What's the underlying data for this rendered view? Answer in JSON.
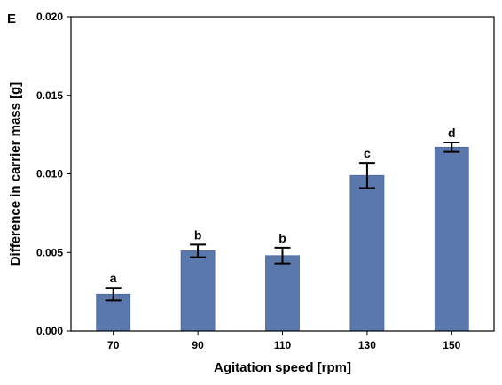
{
  "panel_label": "E",
  "colors": {
    "bar": "#5b78ac",
    "bar_edge": "#4a659a",
    "axis": "#000000"
  },
  "chart_data": {
    "type": "bar",
    "xlabel": "Agitation speed [rpm]",
    "ylabel": "Difference in carrier mass [g]",
    "categories": [
      "70",
      "90",
      "110",
      "130",
      "150"
    ],
    "values": [
      0.00235,
      0.0051,
      0.0048,
      0.0099,
      0.0117
    ],
    "error": [
      0.0004,
      0.0004,
      0.0005,
      0.0008,
      0.0003
    ],
    "significance_labels": [
      "a",
      "b",
      "b",
      "c",
      "d"
    ],
    "ylim": [
      0,
      0.02
    ],
    "yticks": [
      "0.000",
      "0.005",
      "0.010",
      "0.015",
      "0.020"
    ],
    "ytick_values": [
      0,
      0.005,
      0.01,
      0.015,
      0.02
    ],
    "grid": false
  }
}
